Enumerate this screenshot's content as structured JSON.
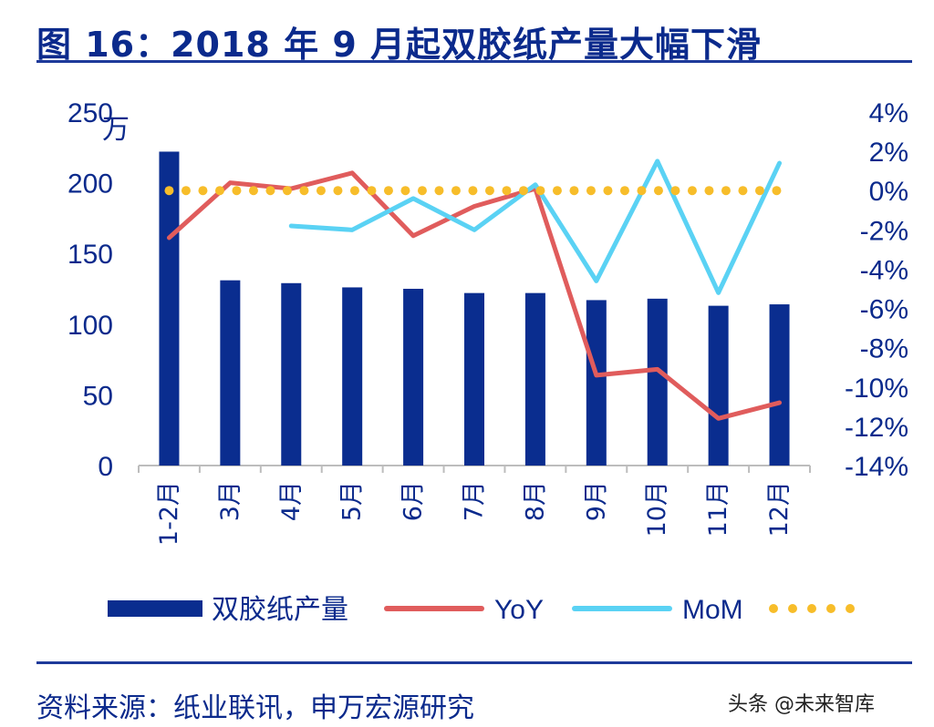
{
  "title": "图 16：2018 年 9 月起双胶纸产量大幅下滑",
  "source": "资料来源：纸业联讯，申万宏源研究",
  "watermark": "头条 @未来智库",
  "chart_data": {
    "type": "bar",
    "categories": [
      "1-2月",
      "3月",
      "4月",
      "5月",
      "6月",
      "7月",
      "8月",
      "9月",
      "10月",
      "11月",
      "12月"
    ],
    "y_left": {
      "unit": "万",
      "ylim": [
        0,
        250
      ],
      "ticks": [
        "0",
        "50",
        "100",
        "150",
        "200",
        "250"
      ]
    },
    "y_right": {
      "ylim": [
        -14,
        4
      ],
      "ticks": [
        "4%",
        "2%",
        "0%",
        "-2%",
        "-4%",
        "-6%",
        "-8%",
        "-10%",
        "-12%",
        "-14%"
      ]
    },
    "series": [
      {
        "name": "双胶纸产量",
        "type": "bar",
        "axis": "left",
        "color": "#0a2d8f",
        "values": [
          222,
          131,
          129,
          126,
          125,
          122,
          122,
          117,
          118,
          113,
          114
        ]
      },
      {
        "name": "YoY",
        "type": "line",
        "axis": "right",
        "color": "#e05c5c",
        "values": [
          -2.4,
          0.4,
          0.1,
          0.9,
          -2.3,
          -0.8,
          0.1,
          -9.4,
          -9.1,
          -11.6,
          -10.8
        ]
      },
      {
        "name": "MoM",
        "type": "line",
        "axis": "right",
        "color": "#5ad2f4",
        "values": [
          null,
          null,
          -1.8,
          -2.0,
          -0.4,
          -2.0,
          0.3,
          -4.6,
          1.5,
          -5.2,
          1.4
        ]
      },
      {
        "name": "",
        "type": "dotted",
        "axis": "right",
        "color": "#f7bd2a",
        "values": [
          0,
          0,
          0,
          0,
          0,
          0,
          0,
          0,
          0,
          0,
          0
        ]
      }
    ],
    "legend": "bottom"
  }
}
